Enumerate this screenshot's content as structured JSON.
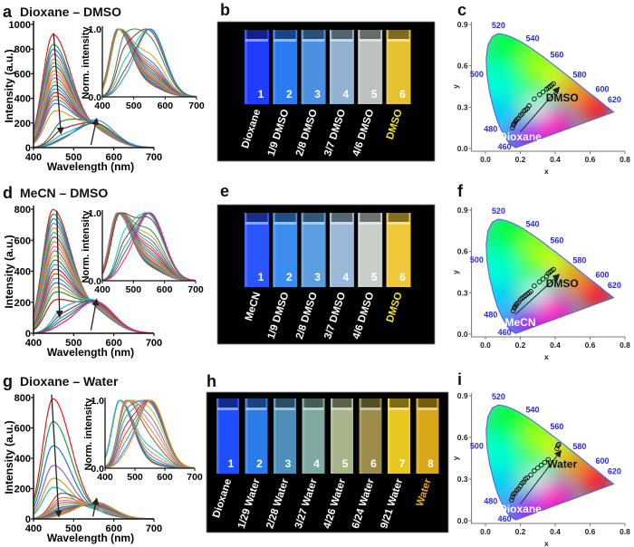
{
  "panels": {
    "a": {
      "letter": "a",
      "title": "Dioxane – DMSO"
    },
    "b": {
      "letter": "b"
    },
    "c": {
      "letter": "c"
    },
    "d": {
      "letter": "d",
      "title": "MeCN – DMSO"
    },
    "e": {
      "letter": "e"
    },
    "f": {
      "letter": "f"
    },
    "g": {
      "letter": "g",
      "title": "Dioxane – Water"
    },
    "h": {
      "letter": "h"
    },
    "i": {
      "letter": "i"
    }
  },
  "photos": [
    {
      "panel": "b",
      "tubes": [
        {
          "number": "1",
          "label": "Dioxane",
          "color": "#1f3cff",
          "label_color": "#ffffff"
        },
        {
          "number": "2",
          "label": "1/9 DMSO",
          "color": "#2a7cf0",
          "label_color": "#ffffff"
        },
        {
          "number": "3",
          "label": "2/8 DMSO",
          "color": "#4a8fe0",
          "label_color": "#ffffff"
        },
        {
          "number": "4",
          "label": "3/7 DMSO",
          "color": "#93b2d2",
          "label_color": "#ffffff"
        },
        {
          "number": "5",
          "label": "4/6 DMSO",
          "color": "#bcc3bf",
          "label_color": "#ffffff"
        },
        {
          "number": "6",
          "label": "DMSO",
          "color": "#e6c231",
          "label_color": "#f5e61a"
        }
      ]
    },
    {
      "panel": "e",
      "tubes": [
        {
          "number": "1",
          "label": "MeCN",
          "color": "#2a55ff",
          "label_color": "#ffffff"
        },
        {
          "number": "2",
          "label": "1/9 DMSO",
          "color": "#3b8ef0",
          "label_color": "#ffffff"
        },
        {
          "number": "3",
          "label": "2/8 DMSO",
          "color": "#5a9ee0",
          "label_color": "#ffffff"
        },
        {
          "number": "4",
          "label": "3/7 DMSO",
          "color": "#9ab8d8",
          "label_color": "#ffffff"
        },
        {
          "number": "5",
          "label": "4/6 DMSO",
          "color": "#c8cfc8",
          "label_color": "#ffffff"
        },
        {
          "number": "6",
          "label": "DMSO",
          "color": "#f0c93a",
          "label_color": "#f5e61a"
        }
      ]
    },
    {
      "panel": "h",
      "tubes": [
        {
          "number": "1",
          "label": "Dioxane",
          "color": "#1e50ff",
          "label_color": "#ffffff"
        },
        {
          "number": "2",
          "label": "1/29 Water",
          "color": "#2a7ce8",
          "label_color": "#ffffff"
        },
        {
          "number": "3",
          "label": "2/28 Water",
          "color": "#4d8fb8",
          "label_color": "#ffffff"
        },
        {
          "number": "4",
          "label": "3/27 Water",
          "color": "#7fa8a0",
          "label_color": "#ffffff"
        },
        {
          "number": "5",
          "label": "4/26 Water",
          "color": "#a8b48a",
          "label_color": "#ffffff"
        },
        {
          "number": "6",
          "label": "6/24 Water",
          "color": "#9c8c4a",
          "label_color": "#ffffff"
        },
        {
          "number": "7",
          "label": "9/21 Water",
          "color": "#e8c820",
          "label_color": "#ffffff"
        },
        {
          "number": "8",
          "label": "Water",
          "color": "#d8a818",
          "label_color": "#e8a818"
        }
      ]
    }
  ],
  "chart_data": [
    {
      "panel": "a",
      "type": "line",
      "xlabel": "Wavelength (nm)",
      "ylabel": "Intensity (a.u.)",
      "xlim": [
        400,
        700
      ],
      "ylim": [
        0,
        1000
      ],
      "xticks": [
        "400",
        "500",
        "600",
        "700"
      ],
      "yticks": [
        "0",
        "200",
        "400",
        "600",
        "800",
        "1000"
      ],
      "blue_band_peak_intensity": [
        910,
        830,
        790,
        750,
        710,
        680,
        650,
        615,
        585,
        555,
        525,
        495,
        465,
        435,
        405,
        375,
        345,
        285,
        185,
        120,
        75,
        45,
        30
      ],
      "yellow_band_peak_intensity": [
        120,
        125,
        128,
        130,
        133,
        135,
        138,
        140,
        142,
        145,
        148,
        150,
        152,
        155,
        158,
        160,
        163,
        165,
        170,
        175,
        180,
        190,
        220
      ],
      "arrows": [
        {
          "from": [
            450,
            930
          ],
          "to": [
            468,
            120
          ]
        },
        {
          "from": [
            543,
            20
          ],
          "to": [
            557,
            230
          ]
        }
      ],
      "inset": {
        "ylabel": "Norm. intensity",
        "xlim": [
          400,
          700
        ],
        "ylim": [
          0,
          1
        ],
        "xticks": [
          "400",
          "500",
          "600",
          "700"
        ],
        "yticks": [
          "0.0",
          "1.0"
        ]
      }
    },
    {
      "panel": "d",
      "type": "line",
      "xlabel": "Wavelength (nm)",
      "ylabel": "Intensity (a.u.)",
      "xlim": [
        400,
        700
      ],
      "ylim": [
        0,
        800
      ],
      "xticks": [
        "400",
        "500",
        "600",
        "700"
      ],
      "yticks": [
        "0",
        "200",
        "400",
        "600",
        "800"
      ],
      "blue_band_peak_intensity": [
        790,
        760,
        730,
        700,
        670,
        640,
        610,
        580,
        550,
        520,
        490,
        460,
        430,
        400,
        370,
        340,
        310,
        280,
        250,
        200,
        130,
        95,
        70,
        50,
        30
      ],
      "yellow_band_peak_intensity": [
        125,
        128,
        131,
        134,
        137,
        140,
        143,
        146,
        149,
        152,
        155,
        158,
        161,
        164,
        167,
        170,
        173,
        176,
        180,
        184,
        188,
        192,
        195,
        198,
        200
      ],
      "arrows": [
        {
          "from": [
            458,
            790
          ],
          "to": [
            465,
            110
          ]
        },
        {
          "from": [
            543,
            20
          ],
          "to": [
            557,
            215
          ]
        }
      ],
      "inset": {
        "ylabel": "Norm. intensity",
        "xlim": [
          400,
          700
        ],
        "ylim": [
          0,
          1
        ],
        "xticks": [
          "400",
          "500",
          "600",
          "700"
        ],
        "yticks": [
          "0.0",
          "1.0"
        ]
      }
    },
    {
      "panel": "g",
      "type": "line",
      "xlabel": "Wavelength (nm)",
      "ylabel": "Intensity (a.u.)",
      "xlim": [
        400,
        700
      ],
      "ylim": [
        0,
        800
      ],
      "xticks": [
        "400",
        "500",
        "600",
        "700"
      ],
      "yticks": [
        "0",
        "200",
        "400",
        "600",
        "800"
      ],
      "blue_band_peak_intensity": [
        790,
        640,
        480,
        350,
        265,
        205,
        160,
        130,
        110,
        95,
        80,
        65,
        55,
        45,
        35,
        25,
        15,
        10
      ],
      "yellow_band_peak_intensity": [
        30,
        34,
        38,
        42,
        46,
        50,
        54,
        58,
        62,
        66,
        70,
        74,
        78,
        84,
        90,
        96,
        104,
        110
      ],
      "arrows": [
        {
          "from": [
            445,
            820
          ],
          "to": [
            463,
            20
          ]
        },
        {
          "from": [
            548,
            15
          ],
          "to": [
            557,
            130
          ]
        }
      ],
      "inset": {
        "ylabel": "Norm. intensity",
        "xlim": [
          400,
          700
        ],
        "ylim": [
          0,
          1
        ],
        "xticks": [
          "400",
          "500",
          "600",
          "700"
        ],
        "yticks": [
          "0.0",
          "1.0"
        ]
      }
    },
    {
      "panel": "c",
      "type": "scatter",
      "xlabel": "x",
      "ylabel": "y",
      "xlim": [
        -0.1,
        0.8
      ],
      "ylim": [
        0,
        0.9
      ],
      "xticks": [
        "0.0",
        "0.2",
        "0.4",
        "0.6",
        "0.8"
      ],
      "yticks": [
        "0.0",
        "0.3",
        "0.6",
        "0.9"
      ],
      "locus_labels": [
        "460",
        "480",
        "500",
        "520",
        "540",
        "560",
        "580",
        "600",
        "620"
      ],
      "points": [
        [
          0.155,
          0.15
        ],
        [
          0.16,
          0.17
        ],
        [
          0.165,
          0.18
        ],
        [
          0.17,
          0.19
        ],
        [
          0.175,
          0.2
        ],
        [
          0.18,
          0.21
        ],
        [
          0.19,
          0.22
        ],
        [
          0.2,
          0.24
        ],
        [
          0.21,
          0.25
        ],
        [
          0.22,
          0.27
        ],
        [
          0.23,
          0.28
        ],
        [
          0.24,
          0.29
        ],
        [
          0.25,
          0.31
        ],
        [
          0.28,
          0.36
        ],
        [
          0.31,
          0.39
        ],
        [
          0.33,
          0.41
        ],
        [
          0.35,
          0.43
        ],
        [
          0.36,
          0.44
        ],
        [
          0.37,
          0.45
        ],
        [
          0.38,
          0.46
        ],
        [
          0.39,
          0.47
        ]
      ],
      "arrow": {
        "from": [
          0.2,
          0.12
        ],
        "to": [
          0.42,
          0.44
        ]
      },
      "start_label": "Dioxane",
      "end_label": "DMSO"
    },
    {
      "panel": "f",
      "type": "scatter",
      "xlabel": "x",
      "ylabel": "y",
      "xlim": [
        -0.1,
        0.8
      ],
      "ylim": [
        0,
        0.9
      ],
      "xticks": [
        "0.0",
        "0.2",
        "0.4",
        "0.6",
        "0.8"
      ],
      "yticks": [
        "0.0",
        "0.3",
        "0.6",
        "0.9"
      ],
      "locus_labels": [
        "460",
        "480",
        "500",
        "520",
        "540",
        "560",
        "580",
        "600",
        "620"
      ],
      "points": [
        [
          0.16,
          0.17
        ],
        [
          0.165,
          0.19
        ],
        [
          0.17,
          0.2
        ],
        [
          0.175,
          0.21
        ],
        [
          0.18,
          0.22
        ],
        [
          0.19,
          0.23
        ],
        [
          0.2,
          0.25
        ],
        [
          0.21,
          0.26
        ],
        [
          0.22,
          0.27
        ],
        [
          0.23,
          0.28
        ],
        [
          0.24,
          0.29
        ],
        [
          0.25,
          0.3
        ],
        [
          0.26,
          0.31
        ],
        [
          0.28,
          0.35
        ],
        [
          0.31,
          0.38
        ],
        [
          0.33,
          0.4
        ],
        [
          0.35,
          0.42
        ],
        [
          0.36,
          0.44
        ],
        [
          0.37,
          0.45
        ],
        [
          0.38,
          0.46
        ],
        [
          0.39,
          0.47
        ]
      ],
      "arrow": {
        "from": [
          0.17,
          0.14
        ],
        "to": [
          0.42,
          0.43
        ]
      },
      "start_label": "MeCN",
      "end_label": "DMSO"
    },
    {
      "panel": "i",
      "type": "scatter",
      "xlabel": "x",
      "ylabel": "y",
      "xlim": [
        -0.1,
        0.8
      ],
      "ylim": [
        0,
        0.9
      ],
      "xticks": [
        "0.0",
        "0.2",
        "0.4",
        "0.6",
        "0.8"
      ],
      "yticks": [
        "0.0",
        "0.3",
        "0.6",
        "0.9"
      ],
      "locus_labels": [
        "460",
        "480",
        "500",
        "520",
        "540",
        "560",
        "580",
        "600",
        "620"
      ],
      "points": [
        [
          0.15,
          0.15
        ],
        [
          0.155,
          0.17
        ],
        [
          0.16,
          0.19
        ],
        [
          0.17,
          0.2
        ],
        [
          0.18,
          0.22
        ],
        [
          0.19,
          0.23
        ],
        [
          0.2,
          0.25
        ],
        [
          0.21,
          0.27
        ],
        [
          0.22,
          0.28
        ],
        [
          0.23,
          0.3
        ],
        [
          0.24,
          0.31
        ],
        [
          0.26,
          0.33
        ],
        [
          0.28,
          0.36
        ],
        [
          0.3,
          0.38
        ],
        [
          0.32,
          0.4
        ],
        [
          0.34,
          0.42
        ],
        [
          0.36,
          0.44
        ],
        [
          0.41,
          0.52
        ],
        [
          0.415,
          0.54
        ],
        [
          0.42,
          0.55
        ]
      ],
      "arrow": {
        "from": [
          0.2,
          0.12
        ],
        "to": [
          0.43,
          0.5
        ]
      },
      "start_label": "Dioxane",
      "end_label": "Water"
    }
  ]
}
